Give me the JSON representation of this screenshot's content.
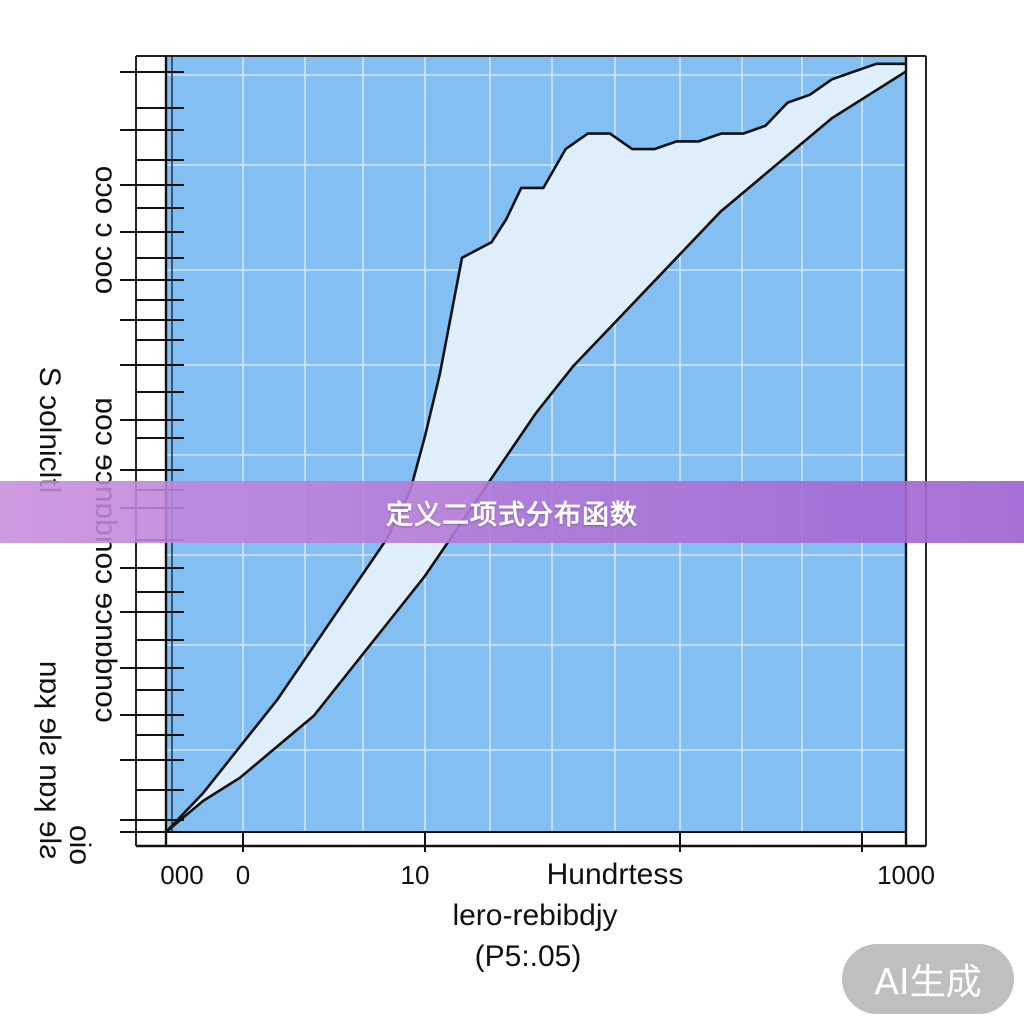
{
  "banner": {
    "text": "定义二项式分布函数"
  },
  "badge": {
    "text": "AI生成"
  },
  "colors": {
    "plot_background": "#84BFF3",
    "grid": "#CFE6FB",
    "band_fill": "#E3F0FB",
    "curve": "#111111"
  },
  "chart_data": {
    "type": "area",
    "title": "",
    "xlabel": "Hundrtess",
    "xlabel_line2": "lero-rebibdjy",
    "xlabel_line3": "(P5:.05)",
    "ylabel_lines": [
      "S ɔolnicltl",
      "oɔo  ɔ ɔoo",
      "nɒʞ ɘlƨ nɒʞ ɘlƨ",
      "ɒoɔ ɘɔnɒbnoɔ ɘɔnɒbnoɔ"
    ],
    "x_tick_labels": [
      "000",
      "0",
      "10",
      "1000"
    ],
    "y_tick_labels": [
      "oio"
    ],
    "grid": true,
    "legend": "none",
    "series": [
      {
        "x": [
          0,
          5,
          10,
          15,
          20,
          25,
          30,
          33,
          35,
          37,
          40,
          42,
          44,
          46,
          48,
          51,
          54,
          57,
          60,
          63,
          66,
          69,
          72,
          75,
          78,
          81,
          84,
          87,
          90,
          93,
          96,
          100
        ],
        "y": [
          0,
          5,
          11,
          17,
          24,
          31,
          38,
          44,
          51,
          59,
          74,
          75,
          76,
          79,
          83,
          83,
          88,
          90,
          90,
          88,
          88,
          89,
          89,
          90,
          90,
          91,
          94,
          95,
          97,
          98,
          99,
          99
        ]
      },
      {
        "x": [
          0,
          5,
          10,
          15,
          20,
          25,
          30,
          35,
          40,
          45,
          50,
          55,
          60,
          65,
          70,
          75,
          80,
          85,
          90,
          95,
          100
        ],
        "y": [
          0,
          4,
          7,
          11,
          15,
          21,
          27,
          33,
          40,
          47,
          54,
          60,
          65,
          70,
          75,
          80,
          84,
          88,
          92,
          95,
          98
        ]
      }
    ]
  }
}
